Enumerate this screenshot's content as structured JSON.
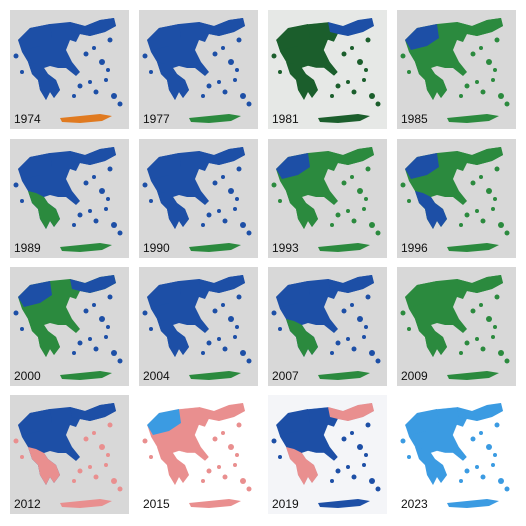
{
  "tiles": [
    {
      "year": "1974"
    },
    {
      "year": "1977"
    },
    {
      "year": "1981"
    },
    {
      "year": "1985"
    },
    {
      "year": "1989"
    },
    {
      "year": "1990"
    },
    {
      "year": "1993"
    },
    {
      "year": "1996"
    },
    {
      "year": "2000"
    },
    {
      "year": "2004"
    },
    {
      "year": "2007"
    },
    {
      "year": "2009"
    },
    {
      "year": "2012"
    },
    {
      "year": "2015"
    },
    {
      "year": "2019"
    },
    {
      "year": "2023"
    }
  ]
}
